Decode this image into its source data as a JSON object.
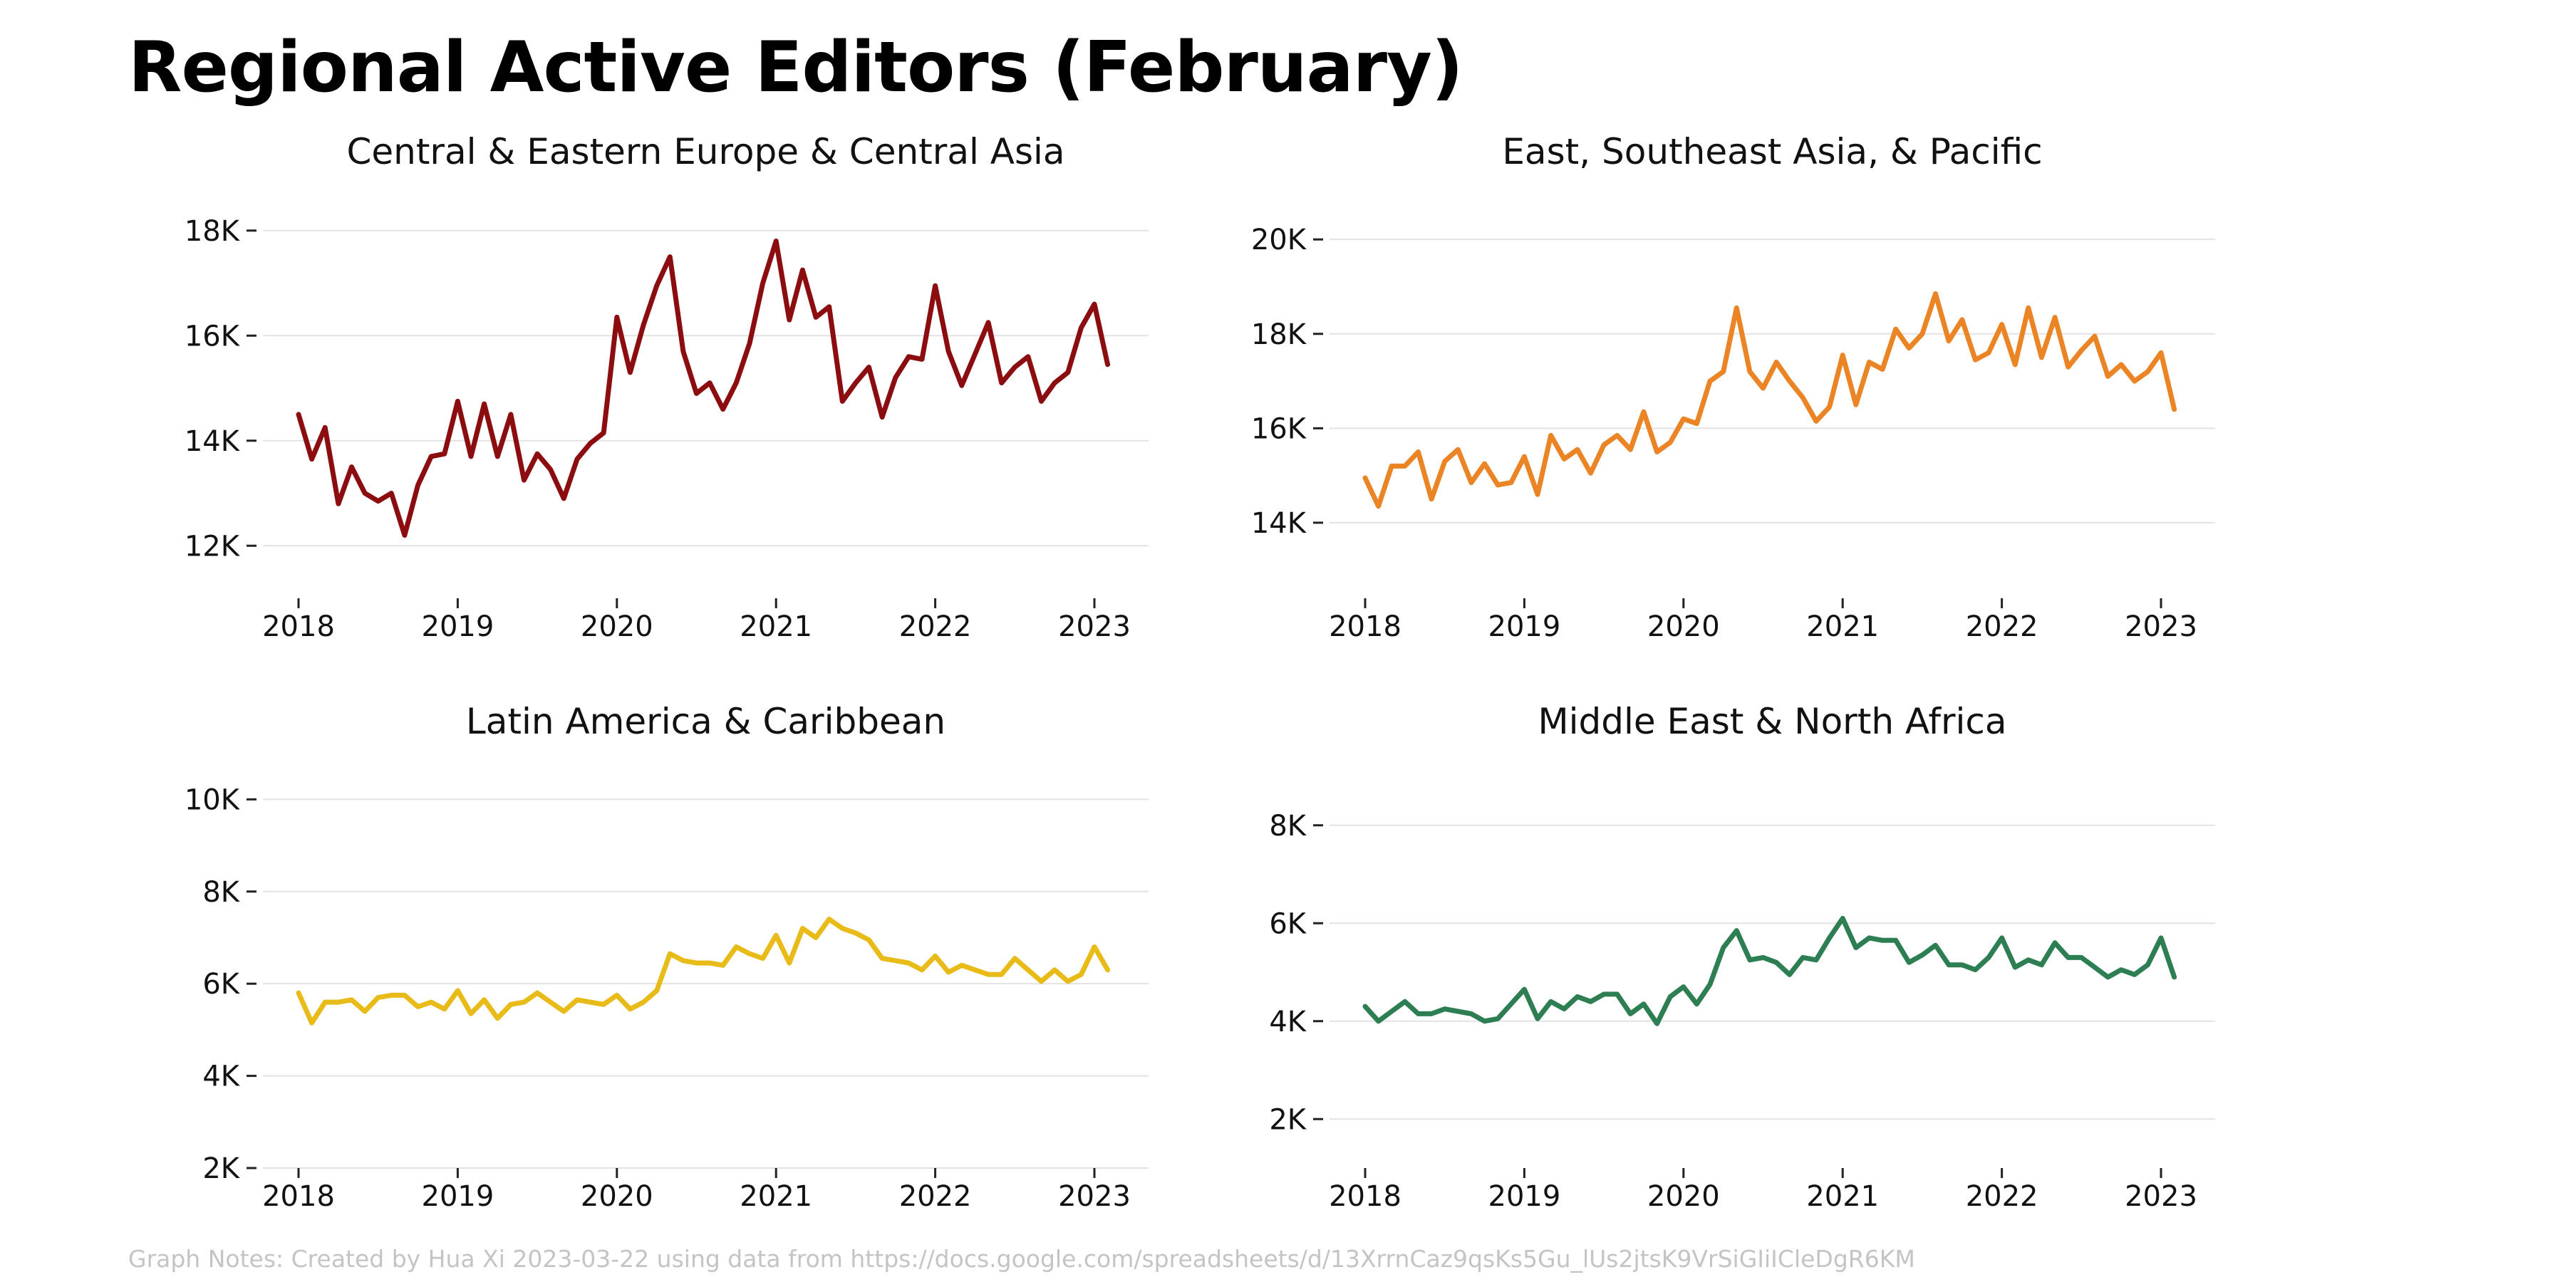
{
  "title": "Regional Active Editors (February)",
  "notes": "Graph Notes: Created by Hua Xi 2023-03-22 using data from https://docs.google.com/spreadsheets/d/13XrrnCaz9qsKs5Gu_lUs2jtsK9VrSiGIiICleDgR6KM",
  "chart_data": [
    {
      "type": "line",
      "title": "Central & Eastern Europe & Central Asia",
      "color": "#8b0d10",
      "x_ticks": [
        "2018",
        "2019",
        "2020",
        "2021",
        "2022",
        "2023"
      ],
      "y_ticks": [
        {
          "v": 12000,
          "label": "12K"
        },
        {
          "v": 14000,
          "label": "14K"
        },
        {
          "v": 16000,
          "label": "16K"
        },
        {
          "v": 18000,
          "label": "18K"
        }
      ],
      "ylim": [
        11000,
        19000
      ],
      "x_start": "2018-01",
      "values": [
        14500,
        13650,
        14250,
        12800,
        13500,
        13000,
        12850,
        13000,
        12200,
        13150,
        13700,
        13750,
        14750,
        13700,
        14700,
        13700,
        14500,
        13250,
        13750,
        13450,
        12900,
        13650,
        13950,
        14150,
        16350,
        15300,
        16200,
        16950,
        17500,
        15700,
        14900,
        15100,
        14600,
        15100,
        15850,
        17000,
        17800,
        16300,
        17250,
        16350,
        16550,
        14750,
        15100,
        15400,
        14450,
        15200,
        15600,
        15550,
        16950,
        15700,
        15050,
        15650,
        16250,
        15100,
        15400,
        15600,
        14750,
        15100,
        15300,
        16150,
        16600,
        15450
      ]
    },
    {
      "type": "line",
      "title": "East, Southeast Asia, & Pacific",
      "color": "#ea8425",
      "x_ticks": [
        "2018",
        "2019",
        "2020",
        "2021",
        "2022",
        "2023"
      ],
      "y_ticks": [
        {
          "v": 14000,
          "label": "14K"
        },
        {
          "v": 16000,
          "label": "16K"
        },
        {
          "v": 18000,
          "label": "18K"
        },
        {
          "v": 20000,
          "label": "20K"
        }
      ],
      "ylim": [
        12400,
        21300
      ],
      "x_start": "2018-01",
      "values": [
        14950,
        14350,
        15200,
        15200,
        15500,
        14500,
        15300,
        15550,
        14850,
        15250,
        14800,
        14850,
        15400,
        14600,
        15850,
        15350,
        15550,
        15050,
        15650,
        15850,
        15550,
        16350,
        15500,
        15700,
        16200,
        16100,
        17000,
        17200,
        18550,
        17200,
        16850,
        17400,
        17000,
        16650,
        16150,
        16450,
        17550,
        16500,
        17400,
        17250,
        18100,
        17700,
        18000,
        18850,
        17850,
        18300,
        17450,
        17600,
        18200,
        17350,
        18550,
        17500,
        18350,
        17300,
        17650,
        17950,
        17100,
        17350,
        17000,
        17200,
        17600,
        16400
      ]
    },
    {
      "type": "line",
      "title": "Latin America & Caribbean",
      "color": "#e8bb18",
      "x_ticks": [
        "2018",
        "2019",
        "2020",
        "2021",
        "2022",
        "2023"
      ],
      "y_ticks": [
        {
          "v": 2000,
          "label": "2K"
        },
        {
          "v": 4000,
          "label": "4K"
        },
        {
          "v": 6000,
          "label": "6K"
        },
        {
          "v": 8000,
          "label": "8K"
        },
        {
          "v": 10000,
          "label": "10K"
        }
      ],
      "ylim": [
        2000,
        10500
      ],
      "x_start": "2018-01",
      "values": [
        5800,
        5150,
        5600,
        5600,
        5650,
        5400,
        5700,
        5750,
        5750,
        5500,
        5600,
        5450,
        5850,
        5350,
        5650,
        5250,
        5550,
        5600,
        5800,
        5600,
        5400,
        5650,
        5600,
        5550,
        5750,
        5450,
        5600,
        5850,
        6650,
        6500,
        6450,
        6450,
        6400,
        6800,
        6650,
        6550,
        7050,
        6450,
        7200,
        7000,
        7400,
        7200,
        7100,
        6950,
        6550,
        6500,
        6450,
        6300,
        6600,
        6250,
        6400,
        6300,
        6200,
        6200,
        6550,
        6300,
        6050,
        6300,
        6050,
        6200,
        6800,
        6300
      ]
    },
    {
      "type": "line",
      "title": "Middle East & North Africa",
      "color": "#2d7e52",
      "x_ticks": [
        "2018",
        "2019",
        "2020",
        "2021",
        "2022",
        "2023"
      ],
      "y_ticks": [
        {
          "v": 2000,
          "label": "2K"
        },
        {
          "v": 4000,
          "label": "4K"
        },
        {
          "v": 6000,
          "label": "6K"
        },
        {
          "v": 8000,
          "label": "8K"
        }
      ],
      "ylim": [
        1000,
        9000
      ],
      "x_start": "2018-01",
      "values": [
        4300,
        4000,
        4200,
        4400,
        4150,
        4150,
        4250,
        4200,
        4150,
        4000,
        4050,
        4350,
        4650,
        4050,
        4400,
        4250,
        4500,
        4400,
        4550,
        4550,
        4150,
        4350,
        3950,
        4500,
        4700,
        4350,
        4750,
        5500,
        5850,
        5250,
        5300,
        5200,
        4950,
        5300,
        5250,
        5700,
        6100,
        5500,
        5700,
        5650,
        5650,
        5200,
        5350,
        5550,
        5150,
        5150,
        5050,
        5300,
        5700,
        5100,
        5250,
        5150,
        5600,
        5300,
        5300,
        5100,
        4900,
        5050,
        4950,
        5150,
        5700,
        4900
      ]
    }
  ]
}
